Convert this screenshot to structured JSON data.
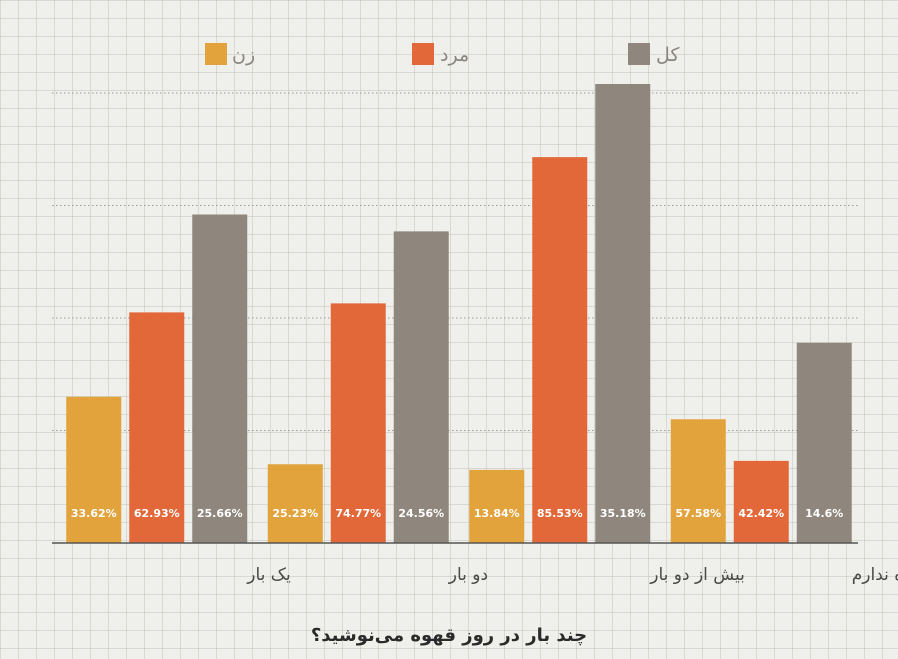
{
  "chart_data": {
    "type": "bar",
    "title": "چند بار در روز قهوه می‌نوشید؟",
    "categories": [
      "یک بار",
      "دو بار",
      "بیش از دو بار",
      "روزانه مصرف قهوه ندارم"
    ],
    "series": [
      {
        "name": "زن",
        "color": "#e3a33c",
        "values": [
          13,
          7,
          6.5,
          11
        ],
        "labels": [
          "33.62%",
          "25.23%",
          "13.84%",
          "57.58%"
        ]
      },
      {
        "name": "مرد",
        "color": "#e2683a",
        "values": [
          20.5,
          21.3,
          34.3,
          7.3
        ],
        "labels": [
          "62.93%",
          "74.77%",
          "85.53%",
          "42.42%"
        ]
      },
      {
        "name": "کل",
        "color": "#8f877d",
        "values": [
          29.2,
          27.7,
          40.8,
          17.8
        ],
        "labels": [
          "25.66%",
          "24.56%",
          "35.18%",
          "14.6%"
        ]
      }
    ],
    "ylim": [
      0,
      40
    ],
    "grid": true,
    "legend": "top"
  }
}
